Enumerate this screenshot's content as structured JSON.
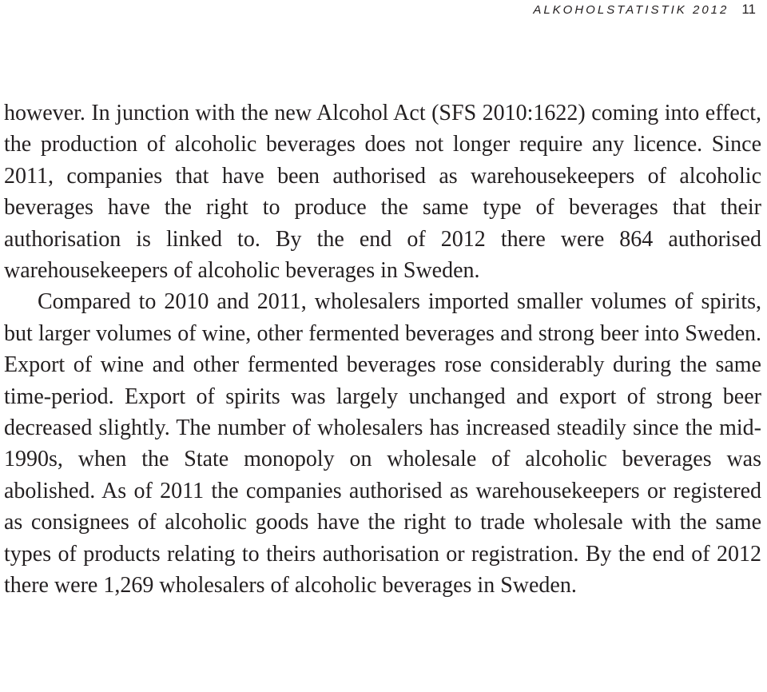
{
  "header": {
    "title": "ALKOHOLSTATISTIK 2012",
    "page_number": "11"
  },
  "paragraphs": [
    "however. In junction with the new Alcohol Act (SFS 2010:1622) coming into effect, the production of alcoholic beverages does not longer require any licence. Since 2011, companies that have been authorised as warehousekeepers of alcoholic beverages have the right to produce the same type of beverages that their authorisation is linked to. By the end of 2012 there were 864 authorised warehousekeepers of alcoholic beverages in Sweden.",
    "Compared to 2010 and 2011, wholesalers imported smaller volumes of spirits, but larger volumes of wine, other fermented beverages and strong beer into Sweden. Export of wine and other fermented beverages rose considerably during the same time-period. Export of spirits was largely unchanged and export of strong beer decreased slightly. The number of wholesalers has increased steadily since the mid-1990s, when the State monopoly on wholesale of alcoholic beverages was abolished. As of 2011 the companies authorised as warehousekeepers or registered as consignees of alcoholic goods have the right to trade wholesale with the same types of products relating to theirs authorisation or registration. By the end of 2012 there were 1,269 wholesalers of alcoholic beverages in Sweden."
  ]
}
